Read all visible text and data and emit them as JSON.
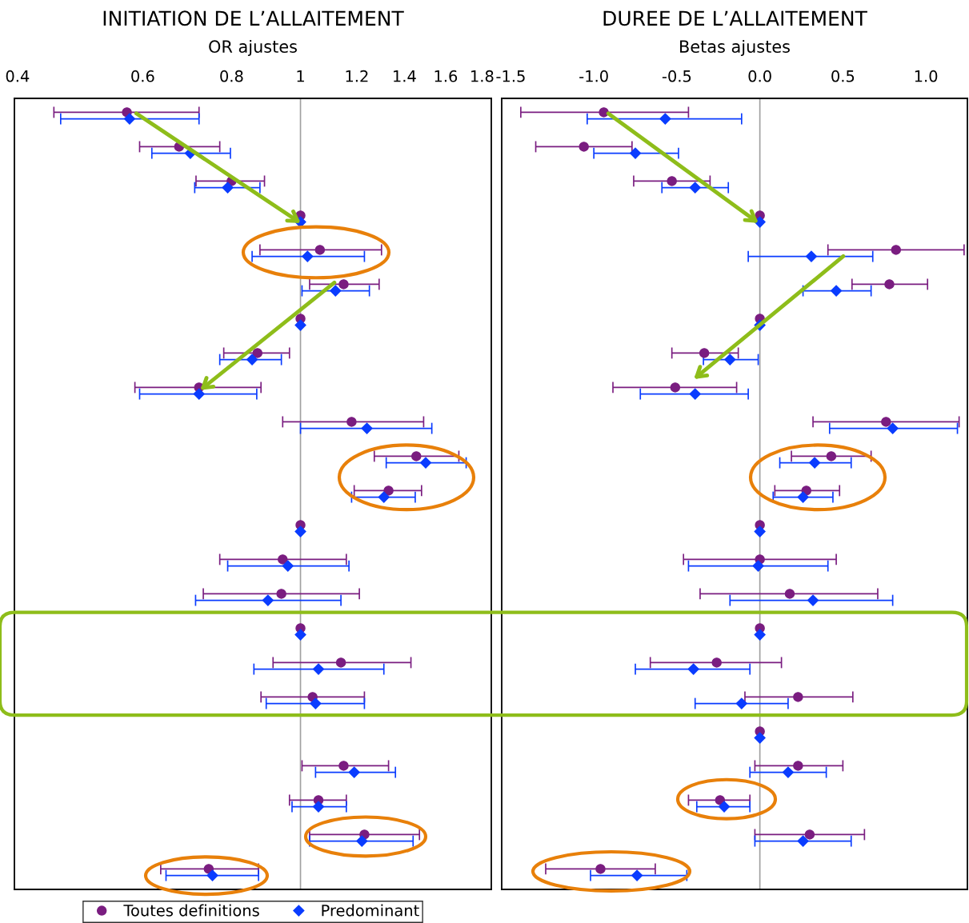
{
  "chart_data": [
    {
      "type": "scatter",
      "orientation": "horizontal",
      "title": "INITIATION DE L’ALLAITEMENT",
      "xlabel": "OR ajustes",
      "log": "x",
      "xlim": [
        0.396,
        1.855
      ],
      "xticks": [
        0.4,
        0.6,
        0.8,
        1,
        1.2,
        1.4,
        1.6,
        1.8
      ],
      "tick_labels": "x",
      "grid": false,
      "legend": "bottom",
      "categories": [
        null,
        null,
        null,
        null,
        null,
        null,
        null,
        null,
        null,
        null,
        null,
        null,
        null,
        null,
        null,
        null,
        null,
        null,
        null,
        null,
        null,
        null,
        null
      ],
      "series": [
        {
          "name": "Toutes definitions",
          "color": "#7a1d80",
          "marker": "circle",
          "values": [
            0.57,
            0.675,
            0.8,
            1,
            1.065,
            1.15,
            1,
            0.87,
            0.72,
            1.18,
            1.455,
            1.33,
            1,
            0.944,
            0.94,
            1,
            1.14,
            1.04,
            null,
            1.15,
            1.06,
            1.23,
            0.743
          ],
          "errors": [
            [
              0.45,
              0.72
            ],
            [
              0.594,
              0.77
            ],
            [
              0.713,
              0.89
            ],
            null,
            [
              0.877,
              1.3
            ],
            [
              1.03,
              1.29
            ],
            null,
            [
              0.78,
              0.965
            ],
            [
              0.585,
              0.88
            ],
            [
              0.944,
              1.49
            ],
            [
              1.27,
              1.67
            ],
            [
              1.19,
              1.48
            ],
            null,
            [
              0.77,
              1.16
            ],
            [
              0.73,
              1.21
            ],
            null,
            [
              0.915,
              1.43
            ],
            [
              0.88,
              1.23
            ],
            null,
            [
              1.005,
              1.33
            ],
            [
              0.965,
              1.16
            ],
            [
              1.03,
              1.47
            ],
            [
              0.636,
              0.873
            ]
          ]
        },
        {
          "name": "Predominant",
          "color": "#0a3cff",
          "marker": "diamond",
          "values": [
            0.575,
            0.7,
            0.79,
            1,
            1.023,
            1.12,
            1,
            0.855,
            0.72,
            1.24,
            1.5,
            1.31,
            1,
            0.96,
            0.9,
            1,
            1.06,
            1.05,
            null,
            1.19,
            1.06,
            1.22,
            0.752
          ],
          "errors": [
            [
              0.46,
              0.72
            ],
            [
              0.618,
              0.797
            ],
            [
              0.71,
              0.877
            ],
            null,
            [
              0.855,
              1.23
            ],
            [
              1.005,
              1.25
            ],
            null,
            [
              0.77,
              0.94
            ],
            [
              0.594,
              0.868
            ],
            [
              1.0,
              1.53
            ],
            [
              1.32,
              1.71
            ],
            [
              1.18,
              1.45
            ],
            null,
            [
              0.79,
              1.17
            ],
            [
              0.712,
              1.14
            ],
            null,
            [
              0.86,
              1.31
            ],
            [
              0.895,
              1.23
            ],
            null,
            [
              1.05,
              1.36
            ],
            [
              0.973,
              1.16
            ],
            [
              1.03,
              1.44
            ],
            [
              0.647,
              0.873
            ]
          ]
        }
      ],
      "ref_lines": [
        {
          "axis": "x",
          "value": 1,
          "color": "#a0a0a0"
        }
      ]
    },
    {
      "type": "scatter",
      "orientation": "horizontal",
      "title": "DUREE DE L’ALLAITEMENT",
      "xlabel": "Betas ajustes",
      "xlim": [
        -1.555,
        1.25
      ],
      "xticks": [
        {
          "value": -1.5,
          "label": "-1.5"
        },
        {
          "value": -1.0,
          "label": "-1.0"
        },
        {
          "value": -0.5,
          "label": "-0.5"
        },
        {
          "value": 0,
          "label": "0.0"
        },
        {
          "value": 0.5,
          "label": "0.5"
        },
        {
          "value": 1.0,
          "label": "1.0"
        }
      ],
      "tick_labels": "x",
      "grid": false,
      "categories": [
        null,
        null,
        null,
        null,
        null,
        null,
        null,
        null,
        null,
        null,
        null,
        null,
        null,
        null,
        null,
        null,
        null,
        null,
        null,
        null,
        null,
        null,
        null
      ],
      "series": [
        {
          "color": "#7a1d80",
          "marker": "circle",
          "values": [
            -0.94,
            -1.06,
            -0.53,
            0,
            0.82,
            0.78,
            0,
            -0.335,
            -0.51,
            0.76,
            0.43,
            0.28,
            0,
            0,
            0.18,
            0,
            -0.26,
            0.23,
            0,
            0.23,
            -0.24,
            0.3,
            -0.96
          ],
          "errors": [
            [
              -1.44,
              -0.43
            ],
            [
              -1.35,
              -0.77
            ],
            [
              -0.76,
              -0.3
            ],
            null,
            [
              0.41,
              1.23
            ],
            [
              0.555,
              1.01
            ],
            null,
            [
              -0.53,
              -0.13
            ],
            [
              -0.885,
              -0.14
            ],
            [
              0.32,
              1.2
            ],
            [
              0.19,
              0.67
            ],
            [
              0.09,
              0.48
            ],
            null,
            [
              -0.46,
              0.46
            ],
            [
              -0.36,
              0.71
            ],
            null,
            [
              -0.66,
              0.13
            ],
            [
              -0.09,
              0.56
            ],
            null,
            [
              -0.03,
              0.5
            ],
            [
              -0.43,
              -0.06
            ],
            [
              -0.03,
              0.63
            ],
            [
              -1.29,
              -0.63
            ]
          ]
        },
        {
          "color": "#0a3cff",
          "marker": "diamond",
          "values": [
            -0.57,
            -0.75,
            -0.39,
            0,
            0.31,
            0.46,
            0,
            -0.18,
            -0.39,
            0.8,
            0.33,
            0.26,
            0,
            -0.01,
            0.32,
            0,
            -0.4,
            -0.11,
            0,
            0.17,
            -0.215,
            0.26,
            -0.74
          ],
          "errors": [
            [
              -1.04,
              -0.11
            ],
            [
              -1.0,
              -0.49
            ],
            [
              -0.59,
              -0.19
            ],
            null,
            [
              -0.07,
              0.68
            ],
            [
              0.26,
              0.67
            ],
            null,
            [
              -0.34,
              -0.01
            ],
            [
              -0.72,
              -0.07
            ],
            [
              0.42,
              1.19
            ],
            [
              0.12,
              0.55
            ],
            [
              0.08,
              0.44
            ],
            null,
            [
              -0.43,
              0.41
            ],
            [
              -0.18,
              0.8
            ],
            null,
            [
              -0.75,
              -0.06
            ],
            [
              -0.39,
              0.17
            ],
            null,
            [
              -0.06,
              0.4
            ],
            [
              -0.38,
              -0.06
            ],
            [
              -0.03,
              0.55
            ],
            [
              -1.02,
              -0.44
            ]
          ]
        }
      ],
      "ref_lines": [
        {
          "axis": "x",
          "value": 0,
          "color": "#a0a0a0"
        }
      ]
    }
  ]
}
